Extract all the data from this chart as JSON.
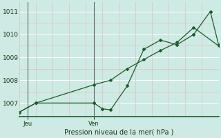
{
  "xlabel": "Pression niveau de la mer( hPa )",
  "bg_color": "#ceeae4",
  "grid_color_major": "#e8c8c8",
  "grid_color_minor": "#ffffff",
  "line_color": "#1a5c28",
  "ylim": [
    1006.4,
    1011.4
  ],
  "yticks": [
    1007,
    1008,
    1009,
    1010,
    1011
  ],
  "xlim": [
    0,
    24
  ],
  "day_ticks": [
    1,
    9
  ],
  "day_labels": [
    "Jeu",
    "Ven"
  ],
  "vline_x": [
    1,
    9
  ],
  "series1_x": [
    0,
    2,
    9,
    10,
    11,
    13,
    15,
    17,
    19,
    21,
    23,
    24
  ],
  "series1_y": [
    1006.6,
    1007.0,
    1007.0,
    1006.75,
    1006.7,
    1007.75,
    1009.35,
    1009.75,
    1009.55,
    1010.0,
    1011.0,
    1009.55
  ],
  "series2_x": [
    0,
    2,
    9,
    11,
    13,
    15,
    17,
    19,
    21,
    24
  ],
  "series2_y": [
    1006.6,
    1007.0,
    1007.8,
    1008.0,
    1008.5,
    1008.9,
    1009.3,
    1009.65,
    1010.3,
    1009.5
  ],
  "marker_size": 2.5
}
